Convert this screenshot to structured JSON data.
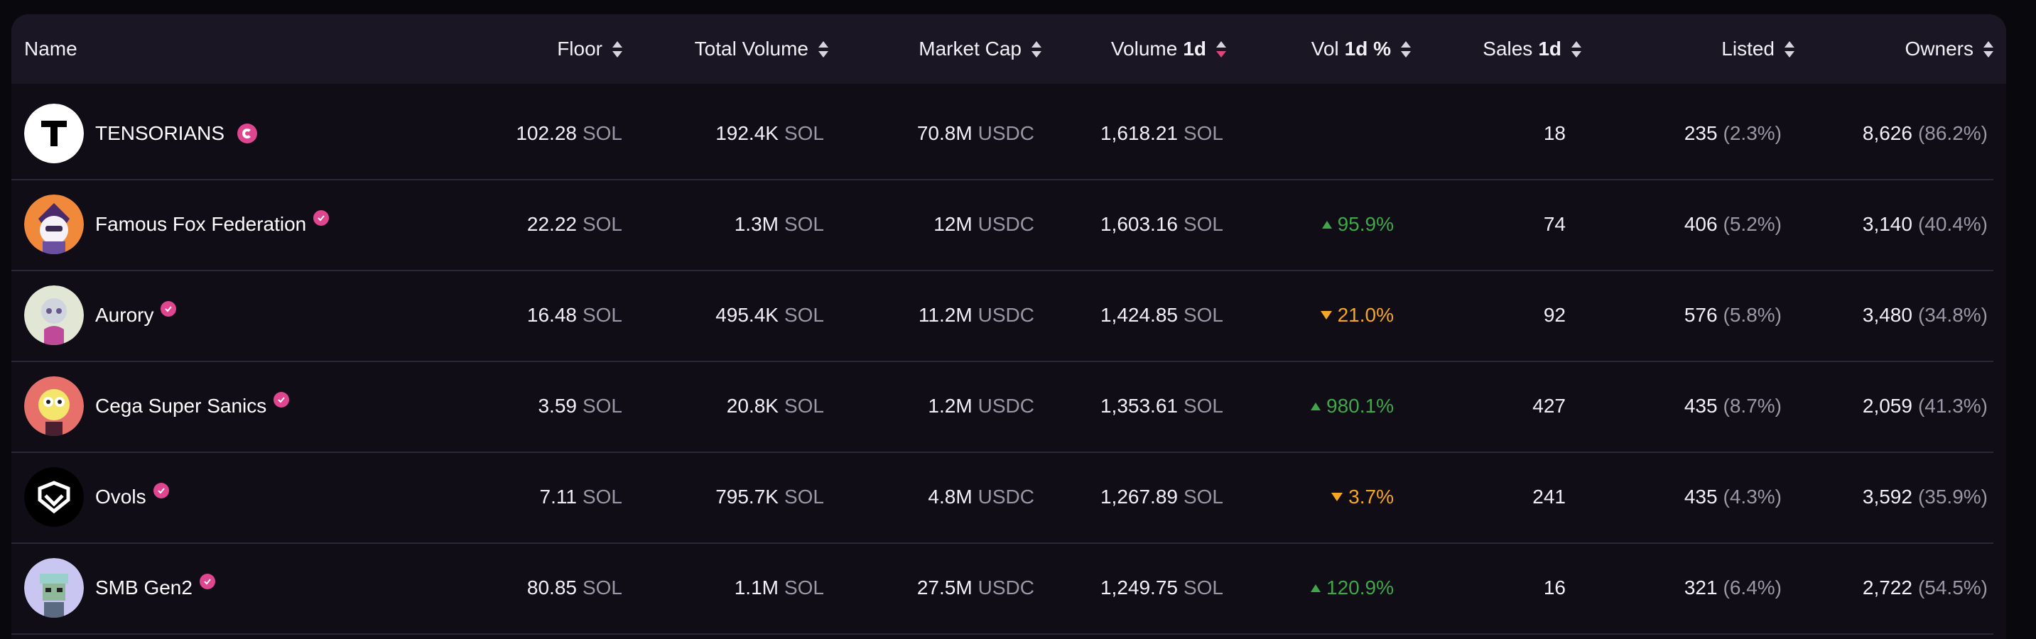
{
  "columns": {
    "name": "Name",
    "floor": "Floor",
    "total_volume": "Total Volume",
    "market_cap": "Market Cap",
    "volume": "Volume",
    "volume_suffix": "1d",
    "vol_pct": "Vol",
    "vol_pct_suffix": "1d %",
    "sales": "Sales",
    "sales_suffix": "1d",
    "listed": "Listed",
    "owners": "Owners"
  },
  "colors": {
    "accent": "#e0458f",
    "up": "#3fa74a",
    "down": "#f5a623"
  },
  "rows": [
    {
      "name": "TENSORIANS",
      "badge": "tensor-badge",
      "floor": "102.28",
      "floor_unit": "SOL",
      "total_volume": "192.4K",
      "total_volume_unit": "SOL",
      "market_cap": "70.8M",
      "market_cap_unit": "USDC",
      "volume": "1,618.21",
      "volume_unit": "SOL",
      "vol_change": "",
      "vol_dir": "none",
      "sales": "18",
      "listed": "235",
      "listed_pct": "(2.3%)",
      "owners": "8,626",
      "owners_pct": "(86.2%)"
    },
    {
      "name": "Famous Fox Federation",
      "badge": "verified",
      "floor": "22.22",
      "floor_unit": "SOL",
      "total_volume": "1.3M",
      "total_volume_unit": "SOL",
      "market_cap": "12M",
      "market_cap_unit": "USDC",
      "volume": "1,603.16",
      "volume_unit": "SOL",
      "vol_change": "95.9%",
      "vol_dir": "up",
      "sales": "74",
      "listed": "406",
      "listed_pct": "(5.2%)",
      "owners": "3,140",
      "owners_pct": "(40.4%)"
    },
    {
      "name": "Aurory",
      "badge": "verified",
      "floor": "16.48",
      "floor_unit": "SOL",
      "total_volume": "495.4K",
      "total_volume_unit": "SOL",
      "market_cap": "11.2M",
      "market_cap_unit": "USDC",
      "volume": "1,424.85",
      "volume_unit": "SOL",
      "vol_change": "21.0%",
      "vol_dir": "down",
      "sales": "92",
      "listed": "576",
      "listed_pct": "(5.8%)",
      "owners": "3,480",
      "owners_pct": "(34.8%)"
    },
    {
      "name": "Cega Super Sanics",
      "badge": "verified",
      "floor": "3.59",
      "floor_unit": "SOL",
      "total_volume": "20.8K",
      "total_volume_unit": "SOL",
      "market_cap": "1.2M",
      "market_cap_unit": "USDC",
      "volume": "1,353.61",
      "volume_unit": "SOL",
      "vol_change": "980.1%",
      "vol_dir": "up",
      "sales": "427",
      "listed": "435",
      "listed_pct": "(8.7%)",
      "owners": "2,059",
      "owners_pct": "(41.3%)"
    },
    {
      "name": "Ovols",
      "badge": "verified",
      "floor": "7.11",
      "floor_unit": "SOL",
      "total_volume": "795.7K",
      "total_volume_unit": "SOL",
      "market_cap": "4.8M",
      "market_cap_unit": "USDC",
      "volume": "1,267.89",
      "volume_unit": "SOL",
      "vol_change": "3.7%",
      "vol_dir": "down",
      "sales": "241",
      "listed": "435",
      "listed_pct": "(4.3%)",
      "owners": "3,592",
      "owners_pct": "(35.9%)"
    },
    {
      "name": "SMB Gen2",
      "badge": "verified",
      "floor": "80.85",
      "floor_unit": "SOL",
      "total_volume": "1.1M",
      "total_volume_unit": "SOL",
      "market_cap": "27.5M",
      "market_cap_unit": "USDC",
      "volume": "1,249.75",
      "volume_unit": "SOL",
      "vol_change": "120.9%",
      "vol_dir": "up",
      "sales": "16",
      "listed": "321",
      "listed_pct": "(6.4%)",
      "owners": "2,722",
      "owners_pct": "(54.5%)"
    }
  ]
}
